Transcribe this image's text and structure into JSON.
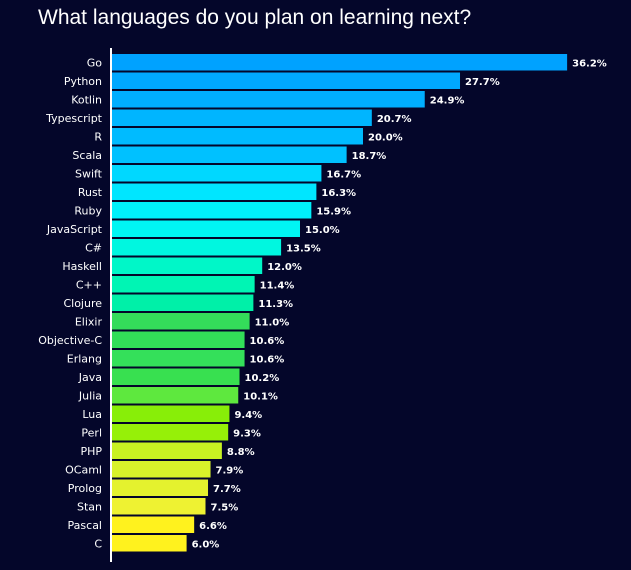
{
  "chart_data": {
    "type": "bar",
    "orientation": "horizontal",
    "title": "What languages do you plan on learning next?",
    "xlabel": "",
    "ylabel": "",
    "grid": false,
    "xlim": [
      0,
      40
    ],
    "categories": [
      "Go",
      "Python",
      "Kotlin",
      "Typescript",
      "R",
      "Scala",
      "Swift",
      "Rust",
      "Ruby",
      "JavaScript",
      "C#",
      "Haskell",
      "C++",
      "Clojure",
      "Elixir",
      "Objective-C",
      "Erlang",
      "Java",
      "Julia",
      "Lua",
      "Perl",
      "PHP",
      "OCaml",
      "Prolog",
      "Stan",
      "Pascal",
      "C"
    ],
    "values": [
      36.2,
      27.7,
      24.9,
      20.7,
      20.0,
      18.7,
      16.7,
      16.3,
      15.9,
      15.0,
      13.5,
      12.0,
      11.4,
      11.3,
      11.0,
      10.6,
      10.6,
      10.2,
      10.1,
      9.4,
      9.3,
      8.8,
      7.9,
      7.7,
      7.5,
      6.6,
      6.0
    ],
    "value_labels": [
      "36.2%",
      "27.7%",
      "24.9%",
      "20.7%",
      "20.0%",
      "18.7%",
      "16.7%",
      "16.3%",
      "15.9%",
      "15.0%",
      "13.5%",
      "12.0%",
      "11.4%",
      "11.3%",
      "11.0%",
      "10.6%",
      "10.6%",
      "10.2%",
      "10.1%",
      "9.4%",
      "9.3%",
      "8.8%",
      "7.9%",
      "7.7%",
      "7.5%",
      "6.6%",
      "6.0%"
    ],
    "colors": [
      "#00a2ff",
      "#00a8ff",
      "#00aeff",
      "#00b5ff",
      "#00bbff",
      "#00c1ff",
      "#00d8ff",
      "#00e6ff",
      "#00f0fb",
      "#00f6f3",
      "#00f7e0",
      "#00f7c8",
      "#00f5b4",
      "#00f0a8",
      "#34dc5a",
      "#32de58",
      "#34e05a",
      "#38e050",
      "#5ee83e",
      "#88ee08",
      "#96f008",
      "#c8f222",
      "#d8f22a",
      "#e4f22e",
      "#eef232",
      "#fff21e",
      "#fff21e"
    ],
    "background": "#04062a",
    "axis_color": "#ffffff"
  }
}
